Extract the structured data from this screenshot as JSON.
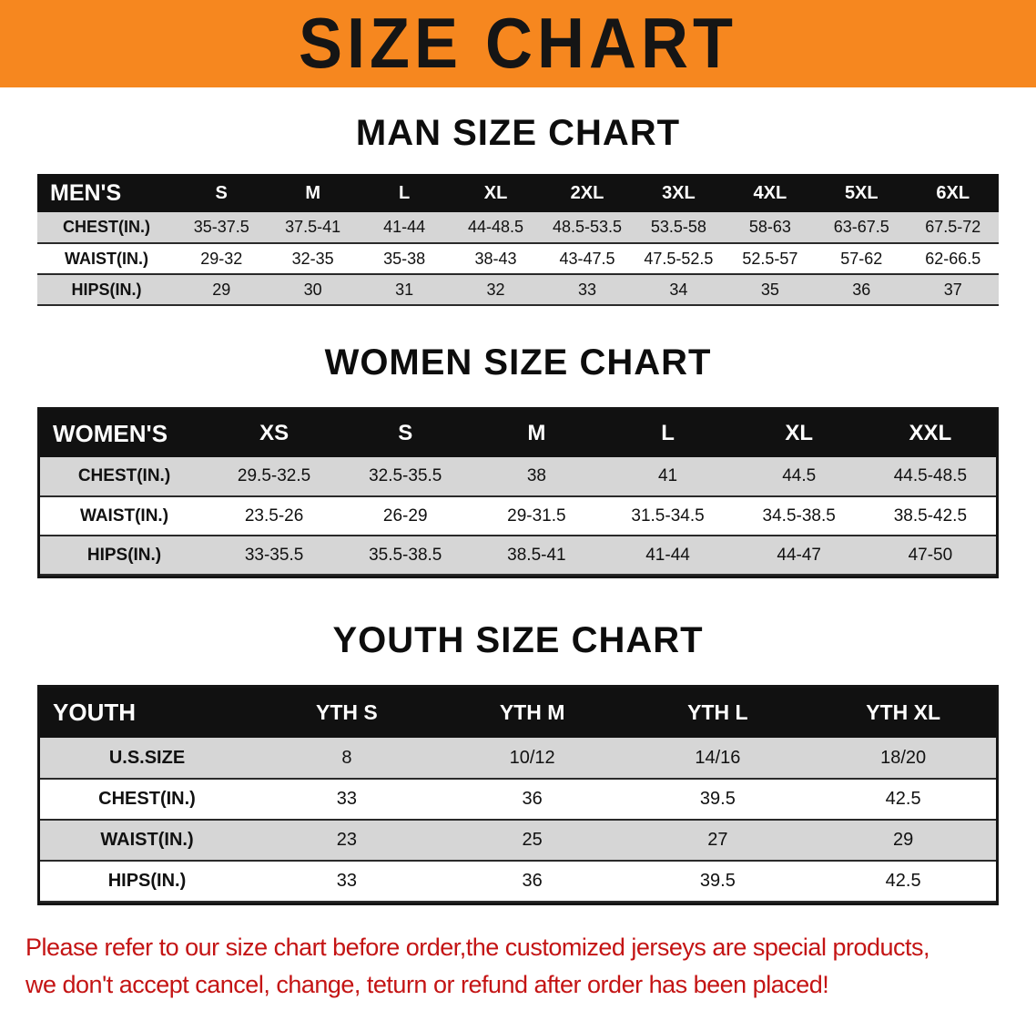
{
  "banner": {
    "title": "SIZE CHART"
  },
  "chart_data": [
    {
      "type": "table",
      "title": "MAN SIZE CHART",
      "corner_label": "MEN'S",
      "columns": [
        "S",
        "M",
        "L",
        "XL",
        "2XL",
        "3XL",
        "4XL",
        "5XL",
        "6XL"
      ],
      "rows": [
        {
          "label": "CHEST(IN.)",
          "values": [
            "35-37.5",
            "37.5-41",
            "41-44",
            "44-48.5",
            "48.5-53.5",
            "53.5-58",
            "58-63",
            "63-67.5",
            "67.5-72"
          ]
        },
        {
          "label": "WAIST(IN.)",
          "values": [
            "29-32",
            "32-35",
            "35-38",
            "38-43",
            "43-47.5",
            "47.5-52.5",
            "52.5-57",
            "57-62",
            "62-66.5"
          ]
        },
        {
          "label": "HIPS(IN.)",
          "values": [
            "29",
            "30",
            "31",
            "32",
            "33",
            "34",
            "35",
            "36",
            "37"
          ]
        }
      ]
    },
    {
      "type": "table",
      "title": "WOMEN SIZE CHART",
      "corner_label": "WOMEN'S",
      "columns": [
        "XS",
        "S",
        "M",
        "L",
        "XL",
        "XXL"
      ],
      "rows": [
        {
          "label": "CHEST(IN.)",
          "values": [
            "29.5-32.5",
            "32.5-35.5",
            "38",
            "41",
            "44.5",
            "44.5-48.5"
          ]
        },
        {
          "label": "WAIST(IN.)",
          "values": [
            "23.5-26",
            "26-29",
            "29-31.5",
            "31.5-34.5",
            "34.5-38.5",
            "38.5-42.5"
          ]
        },
        {
          "label": "HIPS(IN.)",
          "values": [
            "33-35.5",
            "35.5-38.5",
            "38.5-41",
            "41-44",
            "44-47",
            "47-50"
          ]
        }
      ]
    },
    {
      "type": "table",
      "title": "YOUTH SIZE CHART",
      "corner_label": "YOUTH",
      "columns": [
        "YTH S",
        "YTH M",
        "YTH L",
        "YTH XL"
      ],
      "rows": [
        {
          "label": "U.S.SIZE",
          "values": [
            "8",
            "10/12",
            "14/16",
            "18/20"
          ]
        },
        {
          "label": "CHEST(IN.)",
          "values": [
            "33",
            "36",
            "39.5",
            "42.5"
          ]
        },
        {
          "label": "WAIST(IN.)",
          "values": [
            "23",
            "25",
            "27",
            "29"
          ]
        },
        {
          "label": "HIPS(IN.)",
          "values": [
            "33",
            "36",
            "39.5",
            "42.5"
          ]
        }
      ]
    }
  ],
  "footer": {
    "lines": [
      "Please refer to our size chart before order,the customized jerseys are special products,",
      "we don't accept cancel, change, teturn or refund after order has been placed!"
    ]
  },
  "colors": {
    "banner_bg": "#f6871f",
    "header_bg": "#111111",
    "row_alt": "#d6d6d6",
    "footer_text": "#c41414",
    "line_color": "#2a2a2a"
  }
}
